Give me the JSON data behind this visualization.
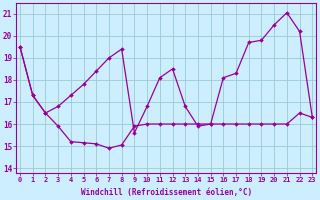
{
  "background_color": "#cceeff",
  "line_color": "#990099",
  "grid_color": "#99cccc",
  "x_values": [
    0,
    1,
    2,
    3,
    4,
    5,
    6,
    7,
    8,
    9,
    10,
    11,
    12,
    13,
    14,
    15,
    16,
    17,
    18,
    19,
    20,
    21,
    22,
    23
  ],
  "line1_y": [
    19.5,
    17.3,
    16.5,
    15.9,
    15.2,
    15.15,
    15.1,
    14.9,
    15.05,
    15.9,
    16.0,
    16.0,
    16.0,
    16.0,
    16.0,
    16.0,
    16.0,
    16.0,
    16.0,
    16.0,
    16.0,
    16.0,
    16.5,
    16.3
  ],
  "line2_y": [
    19.5,
    17.3,
    16.5,
    16.8,
    17.3,
    17.8,
    18.4,
    19.0,
    19.4,
    15.6,
    16.8,
    18.1,
    18.5,
    16.8,
    15.9,
    16.0,
    18.1,
    18.3,
    19.7,
    19.8,
    20.5,
    21.05,
    20.2,
    16.3
  ],
  "ylim_min": 13.8,
  "ylim_max": 21.5,
  "yticks": [
    14,
    15,
    16,
    17,
    18,
    19,
    20,
    21
  ],
  "xlabel": "Windchill (Refroidissement éolien,°C)"
}
